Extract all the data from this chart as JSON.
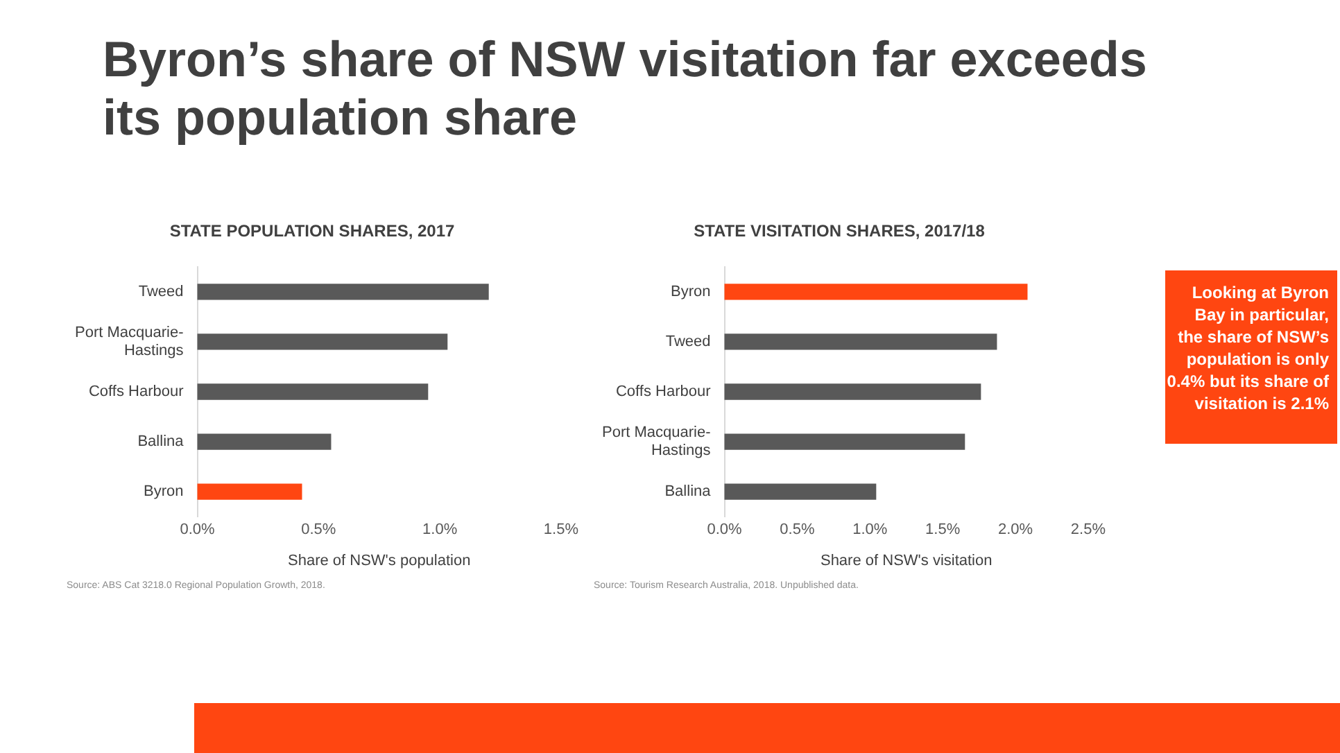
{
  "chart_data": [
    {
      "type": "other",
      "title": "Byron’s share of NSW visitation far exceeds its population share"
    },
    {
      "type": "bar",
      "orientation": "horizontal",
      "title": "STATE POPULATION SHARES, 2017",
      "xlabel": "Share of NSW's population",
      "categories": [
        "Tweed",
        "Port Macquarie-Hastings",
        "Coffs Harbour",
        "Ballina",
        "Byron"
      ],
      "values": [
        1.2,
        1.03,
        0.95,
        0.55,
        0.43
      ],
      "colors": [
        "#595959",
        "#595959",
        "#595959",
        "#595959",
        "#ff4611"
      ],
      "xlim": [
        0,
        1.5
      ],
      "xticks": [
        {
          "value": 0,
          "label": "0.0%"
        },
        {
          "value": 0.5,
          "label": "0.5%"
        },
        {
          "value": 1,
          "label": "1.0%"
        },
        {
          "value": 1.5,
          "label": "1.5%"
        }
      ],
      "annotations": [
        "Source: ABS Cat 3218.0 Regional Population Growth, 2018."
      ]
    },
    {
      "type": "bar",
      "orientation": "horizontal",
      "title": "STATE VISITATION SHARES, 2017/18",
      "xlabel": "Share of NSW's visitation",
      "categories": [
        "Byron",
        "Tweed",
        "Coffs Harbour",
        "Port Macquarie-Hastings",
        "Ballina"
      ],
      "values": [
        2.08,
        1.87,
        1.76,
        1.65,
        1.04
      ],
      "colors": [
        "#ff4611",
        "#595959",
        "#595959",
        "#595959",
        "#595959"
      ],
      "xlim": [
        0,
        2.5
      ],
      "xticks": [
        {
          "value": 0,
          "label": "0.0%"
        },
        {
          "value": 0.5,
          "label": "0.5%"
        },
        {
          "value": 1,
          "label": "1.0%"
        },
        {
          "value": 1.5,
          "label": "1.5%"
        },
        {
          "value": 2,
          "label": "2.0%"
        },
        {
          "value": 2.5,
          "label": "2.5%"
        }
      ],
      "annotations": [
        "Source: Tourism Research Australia, 2018.  Unpublished data."
      ]
    },
    {
      "type": "other",
      "annotations": [
        "Looking at Byron Bay in particular, the share of NSW’s population is only 0.4% but its share of visitation is 2.1%"
      ]
    }
  ]
}
